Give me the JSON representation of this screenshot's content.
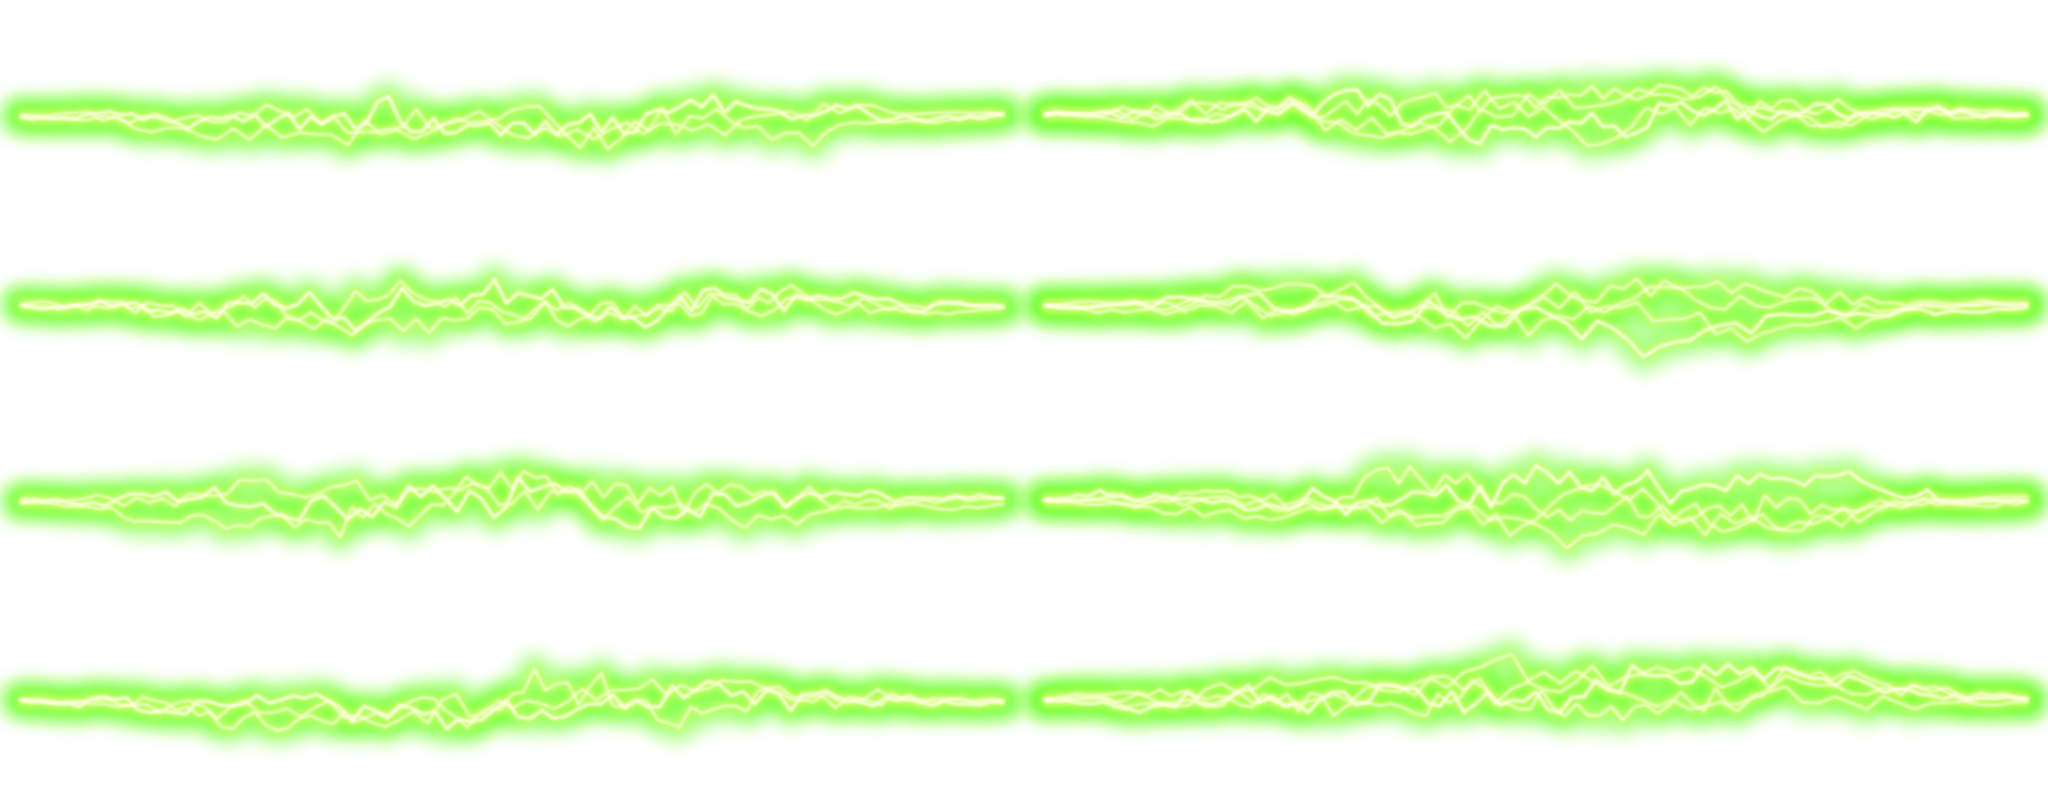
{
  "image": {
    "background": "#ffffff",
    "glow_color": "#66ff22",
    "mid_color": "#c8ff66",
    "core_color": "#fffde0",
    "bolts": [
      {
        "name": "lightning-bolt-1"
      },
      {
        "name": "lightning-bolt-2"
      },
      {
        "name": "lightning-bolt-3"
      },
      {
        "name": "lightning-bolt-4"
      },
      {
        "name": "lightning-bolt-5"
      },
      {
        "name": "lightning-bolt-6"
      },
      {
        "name": "lightning-bolt-7"
      },
      {
        "name": "lightning-bolt-8"
      }
    ]
  }
}
